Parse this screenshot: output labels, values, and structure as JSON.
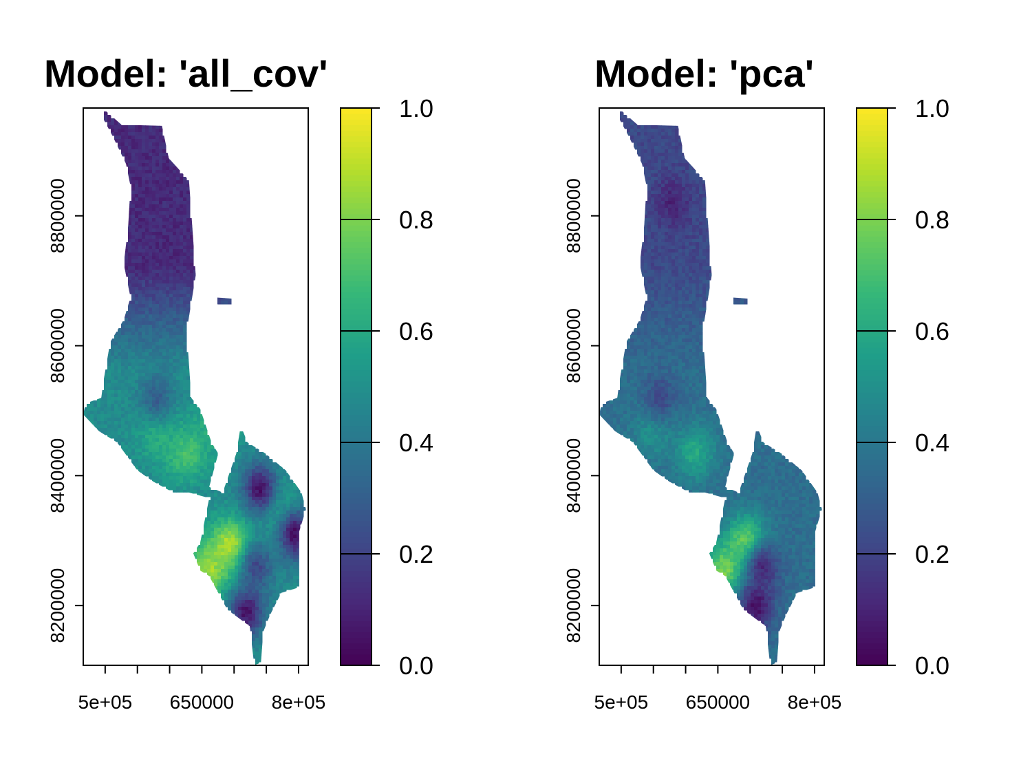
{
  "chart_data": [
    {
      "type": "heatmap",
      "title": "Model: 'all_cov'",
      "xlabel": "",
      "ylabel": "",
      "xlim": [
        466000,
        815000
      ],
      "ylim": [
        8108000,
        8966000
      ],
      "x_ticks": [
        500000,
        550000,
        600000,
        650000,
        700000,
        750000,
        800000
      ],
      "x_tick_labels": [
        {
          "value": 500000,
          "label": "5e+05"
        },
        {
          "value": 650000,
          "label": "650000"
        },
        {
          "value": 800000,
          "label": "8e+05"
        }
      ],
      "y_ticks": [
        8200000,
        8400000,
        8600000,
        8800000
      ],
      "y_tick_labels": [
        "8200000",
        "8400000",
        "8600000",
        "8800000"
      ],
      "legend": {
        "range": [
          0,
          1
        ],
        "ticks": [
          0.0,
          0.2,
          0.4,
          0.6,
          0.8,
          1.0
        ],
        "tick_labels": [
          "0.0",
          "0.2",
          "0.4",
          "0.6",
          "0.8",
          "1.0"
        ],
        "palette": [
          "#440154",
          "#482878",
          "#3e4a89",
          "#31688e",
          "#26828e",
          "#1f9e89",
          "#35b779",
          "#6ece58",
          "#b5de2b",
          "#fde725"
        ]
      },
      "field": {
        "base": 0.48,
        "north_value": 0.12,
        "hotspots": [
          {
            "x": 695000,
            "y": 8290000,
            "value": 0.92
          },
          {
            "x": 625000,
            "y": 8435000,
            "value": 0.72
          },
          {
            "x": 675000,
            "y": 8480000,
            "value": 0.66
          },
          {
            "x": 583000,
            "y": 8465000,
            "value": 0.64
          },
          {
            "x": 770000,
            "y": 8350000,
            "value": 0.64
          },
          {
            "x": 660000,
            "y": 8255000,
            "value": 0.86
          }
        ],
        "coldspots": [
          {
            "x": 720000,
            "y": 8190000,
            "value": 0.05
          },
          {
            "x": 795000,
            "y": 8310000,
            "value": 0.03
          },
          {
            "x": 740000,
            "y": 8380000,
            "value": 0.05
          },
          {
            "x": 735000,
            "y": 8260000,
            "value": 0.22
          },
          {
            "x": 580000,
            "y": 8520000,
            "value": 0.3
          }
        ]
      }
    },
    {
      "type": "heatmap",
      "title": "Model: 'pca'",
      "xlabel": "",
      "ylabel": "",
      "xlim": [
        466000,
        815000
      ],
      "ylim": [
        8108000,
        8966000
      ],
      "x_ticks": [
        500000,
        550000,
        600000,
        650000,
        700000,
        750000,
        800000
      ],
      "x_tick_labels": [
        {
          "value": 500000,
          "label": "5e+05"
        },
        {
          "value": 650000,
          "label": "650000"
        },
        {
          "value": 800000,
          "label": "8e+05"
        }
      ],
      "y_ticks": [
        8200000,
        8400000,
        8600000,
        8800000
      ],
      "y_tick_labels": [
        "8200000",
        "8400000",
        "8600000",
        "8800000"
      ],
      "legend": {
        "range": [
          0,
          1
        ],
        "ticks": [
          0.0,
          0.2,
          0.4,
          0.6,
          0.8,
          1.0
        ],
        "tick_labels": [
          "0.0",
          "0.2",
          "0.4",
          "0.6",
          "0.8",
          "1.0"
        ],
        "palette": [
          "#440154",
          "#482878",
          "#3e4a89",
          "#31688e",
          "#26828e",
          "#1f9e89",
          "#35b779",
          "#6ece58",
          "#b5de2b",
          "#fde725"
        ]
      },
      "field": {
        "base": 0.36,
        "north_value": 0.22,
        "hotspots": [
          {
            "x": 695000,
            "y": 8295000,
            "value": 0.82
          },
          {
            "x": 660000,
            "y": 8255000,
            "value": 0.8
          },
          {
            "x": 615000,
            "y": 8435000,
            "value": 0.6
          },
          {
            "x": 550000,
            "y": 8470000,
            "value": 0.52
          }
        ],
        "coldspots": [
          {
            "x": 710000,
            "y": 8200000,
            "value": 0.05
          },
          {
            "x": 720000,
            "y": 8260000,
            "value": 0.12
          },
          {
            "x": 580000,
            "y": 8820000,
            "value": 0.1
          },
          {
            "x": 560000,
            "y": 8520000,
            "value": 0.22
          }
        ]
      }
    }
  ]
}
